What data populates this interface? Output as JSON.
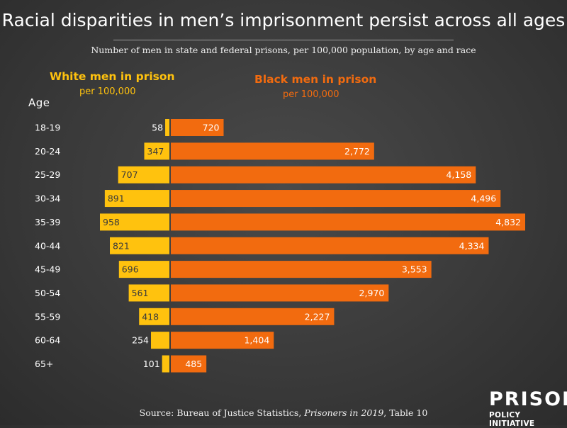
{
  "title": "Racial disparities in men’s imprisonment persist across all ages",
  "subtitle": "Number of men in state and federal prisons, per 100,000 population, by age and race",
  "legend": {
    "white_main": "White men in prison",
    "white_sub": "per 100,000",
    "black_main": "Black men in prison",
    "black_sub": "per 100,000"
  },
  "age_heading": "Age",
  "source_prefix": "Source: Bureau of Justice Statistics, ",
  "source_title": "Prisoners in 2019",
  "source_suffix": ", Table 10",
  "logo": {
    "top": "PRISON",
    "bottom": "POLICY INITIATIVE"
  },
  "colors": {
    "white": "#ffc20e",
    "black": "#f26b0f",
    "background": "#3a3a3a"
  },
  "chart_data": {
    "type": "bar",
    "categories": [
      "18-19",
      "20-24",
      "25-29",
      "30-34",
      "35-39",
      "40-44",
      "45-49",
      "50-54",
      "55-59",
      "60-64",
      "65+"
    ],
    "series": [
      {
        "name": "White men in prison",
        "values": [
          58,
          347,
          707,
          891,
          958,
          821,
          696,
          561,
          418,
          254,
          101
        ]
      },
      {
        "name": "Black men in prison",
        "values": [
          720,
          2772,
          4158,
          4496,
          4832,
          4334,
          3553,
          2970,
          2227,
          1404,
          485
        ]
      }
    ],
    "value_labels": {
      "white": [
        "58",
        "347",
        "707",
        "891",
        "958",
        "821",
        "696",
        "561",
        "418",
        "254",
        "101"
      ],
      "black": [
        "720",
        "2,772",
        "4,158",
        "4,496",
        "4,832",
        "4,334",
        "3,553",
        "2,970",
        "2,227",
        "1,404",
        "485"
      ]
    },
    "orientation": "horizontal",
    "layout": "diverging",
    "grid": false
  }
}
